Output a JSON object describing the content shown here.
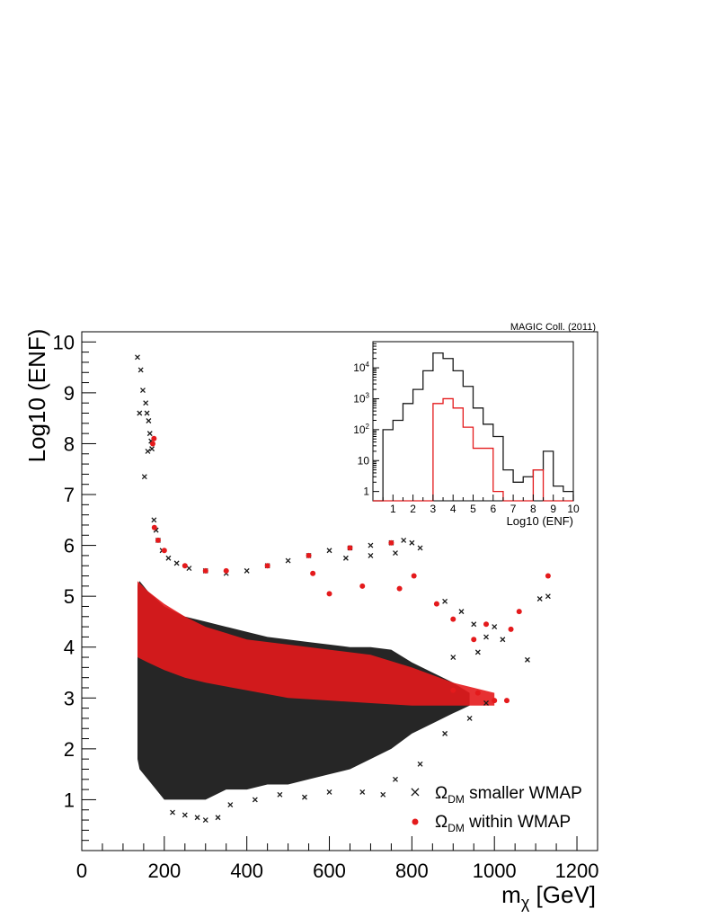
{
  "credit": "MAGIC Coll. (2011)",
  "legend": [
    {
      "symbol": "×",
      "label_main": "Ω",
      "label_sub": "DM",
      "label_rest": " smaller WMAP",
      "color": "#1a1a1a"
    },
    {
      "symbol": "●",
      "label_main": "Ω",
      "label_sub": "DM",
      "label_rest": " within WMAP",
      "color": "#e41a1c"
    }
  ],
  "chart_data": [
    {
      "type": "scatter",
      "title": "",
      "xlabel_main": "m",
      "xlabel_sub": "χ",
      "xlabel_unit": " [GeV]",
      "ylabel": "Log10 (ENF)",
      "xlim": [
        0,
        1250
      ],
      "ylim": [
        0,
        10.2
      ],
      "x_ticks": [
        0,
        200,
        400,
        600,
        800,
        1000,
        1200
      ],
      "y_ticks": [
        1,
        2,
        3,
        4,
        5,
        6,
        7,
        8,
        9,
        10
      ],
      "colors": {
        "smaller": "#1a1a1a",
        "within": "#e41a1c"
      },
      "series": [
        {
          "name": "Ω_DM smaller WMAP",
          "marker": "x",
          "color": "#1a1a1a",
          "points": [
            [
              135,
              9.7
            ],
            [
              143,
              9.45
            ],
            [
              148,
              9.05
            ],
            [
              140,
              8.6
            ],
            [
              155,
              8.8
            ],
            [
              158,
              8.6
            ],
            [
              162,
              8.45
            ],
            [
              165,
              8.2
            ],
            [
              160,
              7.85
            ],
            [
              170,
              7.9
            ],
            [
              152,
              7.35
            ],
            [
              168,
              8.05
            ],
            [
              175,
              6.5
            ],
            [
              180,
              6.3
            ],
            [
              185,
              6.1
            ],
            [
              195,
              5.9
            ],
            [
              210,
              5.75
            ],
            [
              230,
              5.65
            ],
            [
              260,
              5.55
            ],
            [
              300,
              5.5
            ],
            [
              350,
              5.45
            ],
            [
              400,
              5.5
            ],
            [
              450,
              5.6
            ],
            [
              500,
              5.7
            ],
            [
              550,
              5.8
            ],
            [
              600,
              5.9
            ],
            [
              650,
              5.95
            ],
            [
              700,
              6.0
            ],
            [
              750,
              6.05
            ],
            [
              780,
              6.1
            ],
            [
              800,
              6.05
            ],
            [
              820,
              5.95
            ],
            [
              760,
              5.85
            ],
            [
              700,
              5.8
            ],
            [
              640,
              5.75
            ],
            [
              880,
              4.9
            ],
            [
              920,
              4.7
            ],
            [
              950,
              4.45
            ],
            [
              980,
              4.2
            ],
            [
              1020,
              4.15
            ],
            [
              1080,
              3.75
            ],
            [
              1110,
              4.95
            ],
            [
              1130,
              5.0
            ],
            [
              1000,
              4.4
            ],
            [
              960,
              3.9
            ],
            [
              900,
              3.8
            ],
            [
              220,
              0.75
            ],
            [
              250,
              0.7
            ],
            [
              280,
              0.65
            ],
            [
              300,
              0.6
            ],
            [
              330,
              0.65
            ],
            [
              360,
              0.9
            ],
            [
              420,
              1.0
            ],
            [
              480,
              1.1
            ],
            [
              540,
              1.05
            ],
            [
              600,
              1.15
            ],
            [
              680,
              1.15
            ],
            [
              730,
              1.1
            ],
            [
              760,
              1.4
            ],
            [
              820,
              1.7
            ],
            [
              880,
              2.3
            ],
            [
              940,
              2.6
            ],
            [
              980,
              2.9
            ]
          ]
        },
        {
          "name": "Ω_DM within WMAP",
          "marker": "o",
          "color": "#e41a1c",
          "points": [
            [
              175,
              8.1
            ],
            [
              172,
              8.0
            ],
            [
              176,
              6.35
            ],
            [
              185,
              6.1
            ],
            [
              200,
              5.9
            ],
            [
              250,
              5.6
            ],
            [
              300,
              5.5
            ],
            [
              350,
              5.5
            ],
            [
              450,
              5.6
            ],
            [
              550,
              5.8
            ],
            [
              650,
              5.95
            ],
            [
              750,
              6.05
            ],
            [
              560,
              5.45
            ],
            [
              600,
              5.05
            ],
            [
              680,
              5.2
            ],
            [
              770,
              5.15
            ],
            [
              805,
              5.4
            ],
            [
              860,
              4.85
            ],
            [
              900,
              4.55
            ],
            [
              950,
              4.15
            ],
            [
              980,
              4.45
            ],
            [
              1060,
              4.7
            ],
            [
              1040,
              4.35
            ],
            [
              1130,
              5.4
            ],
            [
              900,
              3.15
            ],
            [
              960,
              3.1
            ],
            [
              1000,
              2.95
            ],
            [
              1030,
              2.95
            ]
          ]
        }
      ],
      "dense_bands": [
        {
          "color": "#1a1a1a",
          "x": [
            135,
            140,
            160,
            200,
            250,
            300,
            350,
            400,
            450,
            500,
            550,
            600,
            650,
            700,
            750,
            800,
            850,
            900,
            940
          ],
          "y_low": [
            1.8,
            1.6,
            1.4,
            1.0,
            1.0,
            1.0,
            1.2,
            1.2,
            1.3,
            1.3,
            1.4,
            1.5,
            1.6,
            1.8,
            2.0,
            2.3,
            2.5,
            2.7,
            2.85
          ],
          "y_high": [
            5.2,
            5.3,
            5.1,
            4.8,
            4.6,
            4.5,
            4.4,
            4.3,
            4.2,
            4.15,
            4.1,
            4.05,
            4.0,
            4.0,
            3.95,
            3.7,
            3.5,
            3.3,
            3.1
          ]
        },
        {
          "color": "#e41a1c",
          "x": [
            135,
            160,
            200,
            250,
            300,
            400,
            500,
            600,
            700,
            800,
            900,
            1000
          ],
          "y_low": [
            3.8,
            3.7,
            3.55,
            3.4,
            3.3,
            3.15,
            3.0,
            2.95,
            2.9,
            2.85,
            2.85,
            2.85
          ],
          "y_high": [
            5.3,
            5.1,
            4.85,
            4.6,
            4.4,
            4.15,
            4.05,
            3.95,
            3.85,
            3.6,
            3.3,
            3.1
          ]
        }
      ]
    },
    {
      "type": "histogram",
      "title": "",
      "xlabel": "Log10 (ENF)",
      "ylabel": "",
      "log_y": true,
      "xlim": [
        0,
        10
      ],
      "ylim": [
        0.5,
        70000
      ],
      "x_ticks": [
        1,
        2,
        3,
        4,
        5,
        6,
        7,
        8,
        9,
        10
      ],
      "y_ticks": [
        "1",
        "10",
        "10^2",
        "10^3",
        "10^4"
      ],
      "bin_width": 0.5,
      "series": [
        {
          "name": "smaller WMAP",
          "color": "#1a1a1a",
          "bin_starts": [
            0,
            0.5,
            1.0,
            1.5,
            2.0,
            2.5,
            3.0,
            3.5,
            4.0,
            4.5,
            5.0,
            5.5,
            6.0,
            6.5,
            7.0,
            7.5,
            8.0,
            8.5,
            9.0,
            9.5
          ],
          "counts": [
            0,
            100,
            200,
            700,
            2000,
            8000,
            30000,
            20000,
            8000,
            2500,
            500,
            150,
            60,
            5,
            2,
            3,
            5,
            20,
            1.5,
            1
          ]
        },
        {
          "name": "within WMAP",
          "color": "#e41a1c",
          "bin_starts": [
            0,
            0.5,
            1.0,
            1.5,
            2.0,
            2.5,
            3.0,
            3.5,
            4.0,
            4.5,
            5.0,
            5.5,
            6.0,
            6.5,
            7.0,
            7.5,
            8.0,
            8.5,
            9.0,
            9.5
          ],
          "counts": [
            0,
            0,
            0,
            0,
            0,
            0,
            700,
            1000,
            500,
            120,
            25,
            25,
            1,
            0,
            0,
            0,
            5,
            0,
            0,
            0
          ]
        }
      ]
    }
  ]
}
